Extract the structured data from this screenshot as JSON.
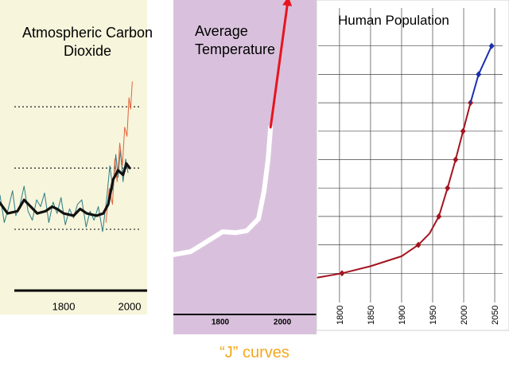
{
  "chart_data": [
    {
      "type": "line",
      "title": "Atmospheric Carbon Dioxide",
      "xlim": [
        1607,
        2053
      ],
      "ylim": [
        0,
        100
      ],
      "xticks": [
        1800,
        2000
      ],
      "ygrid": [
        27,
        54,
        81
      ],
      "series": [
        {
          "color": "#2b7d84",
          "x": [
            1607,
            1620,
            1632,
            1645,
            1655,
            1668,
            1680,
            1692,
            1705,
            1718,
            1730,
            1742,
            1755,
            1768,
            1780,
            1792,
            1805,
            1818,
            1830,
            1842,
            1855,
            1868,
            1880,
            1892,
            1905,
            1918,
            1930,
            1940,
            1950,
            1958,
            1965,
            1972,
            1980,
            1988,
            1995
          ],
          "values": [
            42,
            30,
            36,
            44,
            33,
            38,
            46,
            35,
            31,
            40,
            37,
            43,
            30,
            39,
            34,
            41,
            29,
            36,
            32,
            38,
            40,
            28,
            35,
            31,
            37,
            26,
            40,
            55,
            44,
            60,
            50,
            62,
            48,
            58,
            52
          ]
        },
        {
          "color": "#e2643c",
          "x": [
            1928,
            1938,
            1948,
            1955,
            1962,
            1970,
            1978,
            1985,
            1992,
            1998,
            2003,
            2008
          ],
          "values": [
            30,
            45,
            38,
            58,
            48,
            65,
            55,
            72,
            68,
            85,
            80,
            92
          ]
        },
        {
          "color": "#111111",
          "x": [
            1607,
            1630,
            1660,
            1680,
            1700,
            1720,
            1745,
            1765,
            1780,
            1800,
            1830,
            1850,
            1870,
            1900,
            1920,
            1935,
            1950,
            1965,
            1980,
            1990,
            2000
          ],
          "values": [
            38.6,
            34,
            35,
            40,
            37,
            34,
            35,
            37,
            36,
            34,
            33,
            36,
            34,
            33,
            34,
            38,
            49,
            53,
            51,
            56,
            54
          ]
        }
      ]
    },
    {
      "type": "line",
      "title": "Average Temperature",
      "xlim": [
        1649,
        2110
      ],
      "ylim": [
        0,
        100
      ],
      "xticks": [
        1800,
        2000
      ],
      "series": [
        {
          "color": "#ffffff",
          "x": [
            1649,
            1705,
            1762,
            1808,
            1849,
            1885,
            1923,
            1941,
            1954,
            1962
          ],
          "values": [
            19,
            20,
            23.5,
            26.3,
            26,
            26.6,
            30.4,
            39.2,
            49.4,
            59.5
          ]
        },
        {
          "color": "#e8141e",
          "arrow": true,
          "x": [
            1962,
            2018
          ],
          "values": [
            59.5,
            100
          ]
        }
      ]
    },
    {
      "type": "line",
      "title": "Human Population",
      "xlim": [
        1763,
        2073
      ],
      "ylim": [
        0,
        10
      ],
      "xticks": [
        1800,
        1850,
        1900,
        1950,
        2000,
        2050
      ],
      "ygrid": [
        1,
        2,
        3,
        4,
        5,
        6,
        7,
        8,
        9
      ],
      "series": [
        {
          "color": "#a3141f",
          "markers": [
            1804,
            1927,
            1960,
            1974,
            1987,
            1999,
            2011
          ],
          "x": [
            1765,
            1804,
            1850,
            1900,
            1927,
            1945,
            1960,
            1974,
            1987,
            1999,
            2011
          ],
          "values": [
            0.85,
            1,
            1.25,
            1.6,
            2,
            2.4,
            3,
            4,
            5,
            6,
            7
          ]
        },
        {
          "color": "#1b2fae",
          "markers": [
            2024,
            2045
          ],
          "x": [
            2011,
            2024,
            2045
          ],
          "values": [
            7,
            8,
            9
          ]
        }
      ]
    }
  ],
  "caption": "“J” curves"
}
